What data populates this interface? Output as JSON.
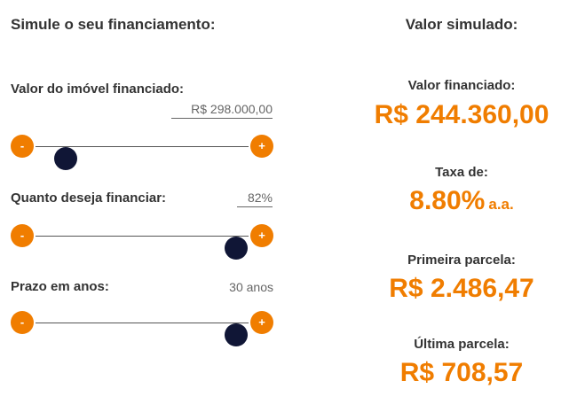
{
  "form": {
    "title": "Simule o seu financiamento:",
    "property": {
      "label": "Valor do imóvel financiado:",
      "value": "R$ 298.000,00",
      "slider_level": 0.14
    },
    "finance": {
      "label": "Quanto deseja financiar:",
      "value": "82%",
      "slider_level": 0.94
    },
    "term": {
      "label": "Prazo em anos:",
      "value": "30 anos",
      "slider_level": 0.94
    },
    "minus_symbol": "-",
    "plus_symbol": "+"
  },
  "result": {
    "title": "Valor simulado:",
    "financed": {
      "label": "Valor financiado:",
      "value": "R$ 244.360,00"
    },
    "rate": {
      "label": "Taxa de:",
      "value": "8.80%",
      "suffix": "a.a."
    },
    "first": {
      "label": "Primeira parcela:",
      "value": "R$ 2.486,47"
    },
    "last": {
      "label": "Última parcela:",
      "value": "R$ 708,57"
    }
  },
  "colors": {
    "accent": "#f07d00",
    "thumb": "#101636",
    "text": "#333333"
  }
}
